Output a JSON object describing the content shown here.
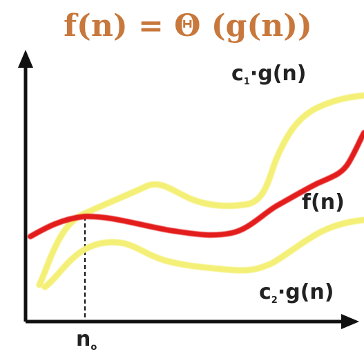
{
  "title": {
    "text": "f(n) = Θ (g(n))",
    "color": "#c8783c"
  },
  "curves": {
    "upper": {
      "label_main": "c",
      "label_sub": "1",
      "label_rest": "·g(n)",
      "color": "#f4f077"
    },
    "middle": {
      "label": "f(n)",
      "color": "#e31b1b"
    },
    "lower": {
      "label_main": "c",
      "label_sub": "2",
      "label_rest": "·g(n)",
      "color": "#f4f077"
    }
  },
  "x_axis": {
    "marker_main": "n",
    "marker_sub": "o"
  },
  "colors": {
    "axis": "#111111",
    "text": "#222222",
    "dashed_line": "#111111"
  }
}
